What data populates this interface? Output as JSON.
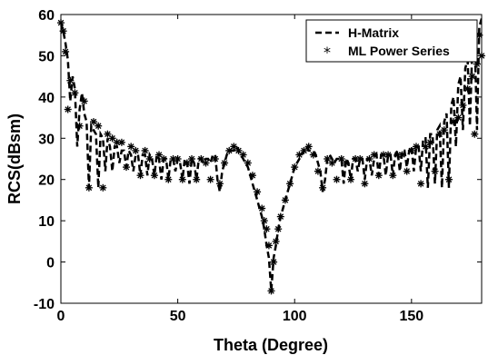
{
  "chart_data": {
    "type": "line",
    "title": "",
    "xlabel": "Theta (Degree)",
    "ylabel": "RCS(dBsm)",
    "xlim": [
      0,
      180
    ],
    "ylim": [
      -10,
      60
    ],
    "xticks": [
      0,
      50,
      100,
      150
    ],
    "yticks": [
      -10,
      0,
      10,
      20,
      30,
      40,
      50,
      60
    ],
    "grid": false,
    "legend_position": "top-right",
    "series": [
      {
        "name": "H-Matrix",
        "style": "dashed line",
        "color": "#000000",
        "x": [
          0,
          1,
          2,
          3,
          4,
          5,
          6,
          7,
          8,
          9,
          10,
          11,
          12,
          13,
          14,
          15,
          16,
          17,
          18,
          19,
          20,
          21,
          22,
          23,
          24,
          25,
          26,
          27,
          28,
          29,
          30,
          31,
          32,
          33,
          34,
          35,
          36,
          37,
          38,
          39,
          40,
          41,
          42,
          43,
          44,
          45,
          46,
          47,
          48,
          49,
          50,
          51,
          52,
          53,
          54,
          55,
          56,
          57,
          58,
          59,
          60,
          61,
          62,
          63,
          64,
          65,
          66,
          67,
          68,
          69,
          70,
          71,
          72,
          73,
          74,
          75,
          76,
          77,
          78,
          79,
          80,
          81,
          82,
          83,
          84,
          85,
          86,
          87,
          88,
          89,
          90,
          91,
          92,
          93,
          94,
          95,
          96,
          97,
          98,
          99,
          100,
          101,
          102,
          103,
          104,
          105,
          106,
          107,
          108,
          109,
          110,
          111,
          112,
          113,
          114,
          115,
          116,
          117,
          118,
          119,
          120,
          121,
          122,
          123,
          124,
          125,
          126,
          127,
          128,
          129,
          130,
          131,
          132,
          133,
          134,
          135,
          136,
          137,
          138,
          139,
          140,
          141,
          142,
          143,
          144,
          145,
          146,
          147,
          148,
          149,
          150,
          151,
          152,
          153,
          154,
          155,
          156,
          157,
          158,
          159,
          160,
          161,
          162,
          163,
          164,
          165,
          166,
          167,
          168,
          169,
          170,
          171,
          172,
          173,
          174,
          175,
          176,
          177,
          178,
          179,
          180
        ],
        "y": [
          58,
          56,
          53,
          49,
          39,
          45,
          42,
          28,
          37,
          41,
          36,
          34,
          18,
          33,
          32,
          31,
          18,
          31,
          30,
          22,
          30,
          28,
          22,
          28,
          28,
          24,
          27,
          27,
          23,
          27,
          26,
          22,
          26,
          26,
          21,
          26,
          26,
          21,
          26,
          25,
          21,
          26,
          25,
          20,
          25,
          25,
          20,
          25,
          25,
          22,
          25,
          24,
          20,
          25,
          24,
          19,
          25,
          24,
          20,
          25,
          25,
          24,
          25,
          25,
          24,
          26,
          26,
          20,
          17,
          22,
          24,
          26,
          27,
          27,
          27,
          28,
          27,
          26,
          25,
          24,
          23,
          21,
          19,
          17,
          15,
          13,
          11,
          8,
          4,
          1,
          -7,
          1,
          4,
          8,
          11,
          13,
          15,
          17,
          19,
          21,
          23,
          24,
          25,
          26,
          27,
          28,
          27,
          27,
          27,
          26,
          24,
          22,
          17,
          20,
          25,
          26,
          25,
          24,
          25,
          25,
          25,
          19,
          25,
          24,
          20,
          25,
          25,
          22,
          25,
          25,
          20,
          25,
          25,
          21,
          25,
          26,
          21,
          26,
          26,
          21,
          26,
          26,
          21,
          26,
          27,
          22,
          27,
          27,
          23,
          27,
          28,
          22,
          28,
          28,
          22,
          30,
          30,
          18,
          31,
          31,
          19,
          32,
          33,
          18,
          34,
          36,
          18,
          38,
          40,
          28,
          43,
          45,
          32,
          47,
          49,
          33,
          52,
          55,
          32,
          57,
          59
        ]
      },
      {
        "name": "ML Power Series",
        "style": "asterisk markers",
        "color": "#000000",
        "x": [
          0,
          1,
          2,
          3,
          4,
          6,
          8,
          10,
          12,
          14,
          16,
          18,
          20,
          22,
          24,
          26,
          28,
          30,
          32,
          34,
          36,
          38,
          40,
          42,
          44,
          46,
          48,
          50,
          52,
          54,
          56,
          58,
          60,
          62,
          64,
          66,
          68,
          70,
          72,
          74,
          76,
          78,
          80,
          82,
          84,
          86,
          87,
          88,
          89,
          90,
          91,
          92,
          93,
          94,
          96,
          98,
          100,
          102,
          104,
          106,
          108,
          110,
          112,
          114,
          116,
          118,
          120,
          122,
          124,
          126,
          128,
          130,
          132,
          134,
          136,
          138,
          140,
          142,
          144,
          146,
          148,
          150,
          152,
          154,
          156,
          158,
          160,
          162,
          164,
          166,
          168,
          170,
          172,
          174,
          176,
          177,
          178,
          179,
          180
        ],
        "y": [
          58,
          56,
          51,
          37,
          44,
          41,
          33,
          39,
          18,
          34,
          33,
          18,
          31,
          30,
          29,
          29,
          23,
          28,
          27,
          21,
          27,
          25,
          21,
          26,
          25,
          20,
          25,
          25,
          20,
          24,
          25,
          20,
          25,
          24,
          20,
          25,
          19,
          24,
          27,
          28,
          27,
          26,
          24,
          21,
          17,
          13,
          10,
          8,
          4,
          -7,
          0,
          5,
          8,
          11,
          15,
          19,
          23,
          26,
          27,
          28,
          26,
          22,
          18,
          25,
          24,
          20,
          25,
          24,
          20,
          25,
          25,
          19,
          25,
          26,
          21,
          26,
          26,
          21,
          26,
          26,
          22,
          27,
          28,
          19,
          28,
          29,
          22,
          31,
          32,
          20,
          34,
          35,
          38,
          42,
          45,
          31,
          48,
          55,
          50
        ]
      }
    ]
  }
}
